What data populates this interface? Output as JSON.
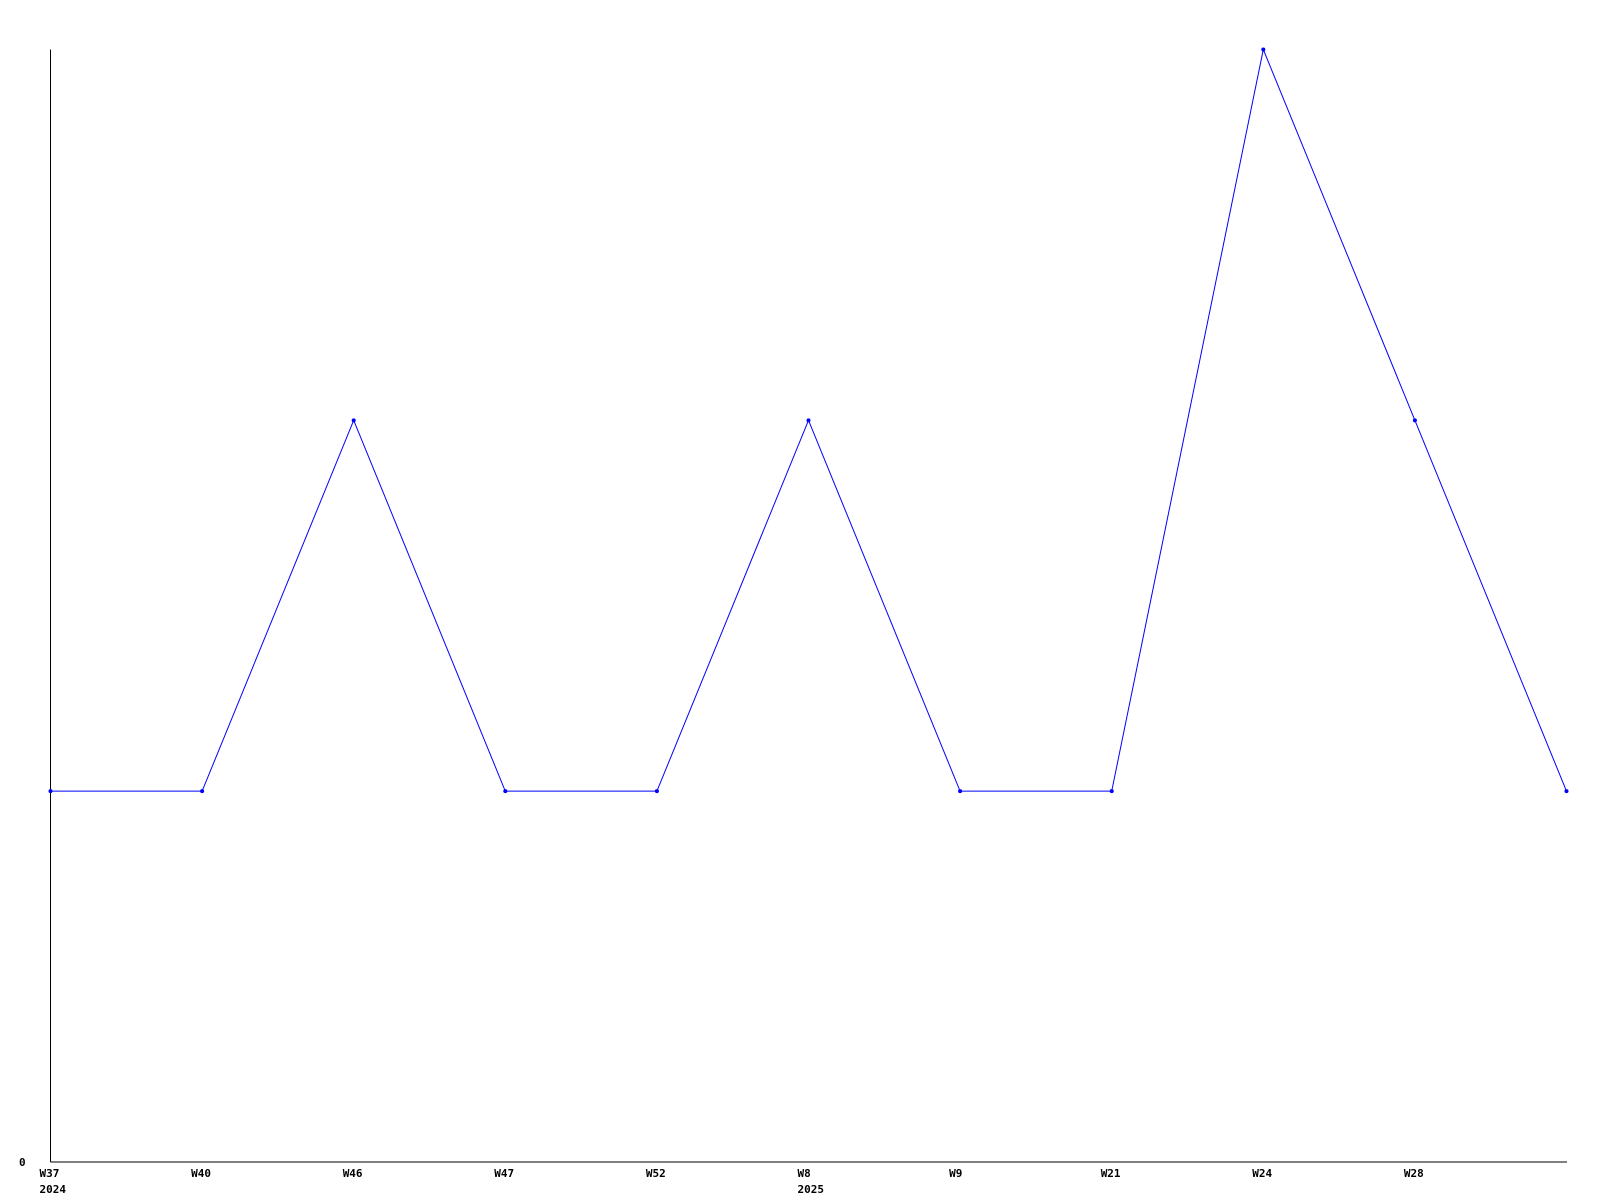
{
  "chart_data": {
    "type": "line",
    "title": "",
    "xlabel": "",
    "ylabel": "",
    "categories": [
      "W37",
      "W40",
      "W46",
      "W47",
      "W52",
      "W8",
      "W9",
      "W21",
      "W24",
      "W28",
      ""
    ],
    "year_labels": [
      "2024",
      "",
      "",
      "",
      "",
      "2025",
      "",
      "",
      "",
      "",
      ""
    ],
    "series": [
      {
        "values": [
          1,
          1,
          2,
          1,
          1,
          2,
          1,
          1,
          3,
          2,
          1
        ]
      }
    ],
    "ylim": [
      0,
      3
    ],
    "y_tick_labels": [
      "0"
    ],
    "grid": false,
    "line_color": "#0000ff",
    "axis_color": "#000000"
  }
}
